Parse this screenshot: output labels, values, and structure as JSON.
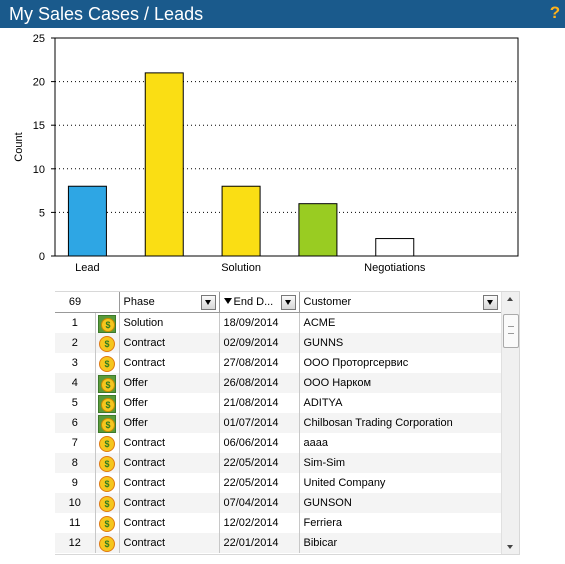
{
  "window": {
    "title": "My Sales Cases / Leads",
    "help_icon": "question-mark-icon"
  },
  "chart_data": {
    "type": "bar",
    "ylabel": "Count",
    "ylim": [
      0,
      25
    ],
    "yticks": [
      0,
      5,
      10,
      15,
      20,
      25
    ],
    "grid": "horizontal dotted",
    "categories": [
      "Lead",
      "",
      "Solution",
      "",
      "Negotiations",
      ""
    ],
    "values": [
      8,
      21,
      8,
      6,
      2,
      0
    ],
    "colors": [
      "#2ea6e4",
      "#fade14",
      "#fade14",
      "#99cc22",
      "#ffffff",
      "#ffffff"
    ]
  },
  "grid": {
    "total_count": "69",
    "columns": [
      {
        "label": "Phase",
        "filter": true,
        "sort": ""
      },
      {
        "label": "End D...",
        "filter": true,
        "sort": "descending"
      },
      {
        "label": "Customer",
        "filter": true,
        "sort": ""
      }
    ],
    "rows": [
      {
        "num": "1",
        "icon": "box",
        "phase": "Solution",
        "end_date": "18/09/2014",
        "customer": "ACME"
      },
      {
        "num": "2",
        "icon": "plain",
        "phase": "Contract",
        "end_date": "02/09/2014",
        "customer": "GUNNS"
      },
      {
        "num": "3",
        "icon": "plain",
        "phase": "Contract",
        "end_date": "27/08/2014",
        "customer": "ООО Проторгсервис"
      },
      {
        "num": "4",
        "icon": "box",
        "phase": "Offer",
        "end_date": "26/08/2014",
        "customer": "ООО Нарком"
      },
      {
        "num": "5",
        "icon": "box",
        "phase": "Offer",
        "end_date": "21/08/2014",
        "customer": "ADITYA"
      },
      {
        "num": "6",
        "icon": "box",
        "phase": "Offer",
        "end_date": "01/07/2014",
        "customer": "Chilbosan Trading Corporation"
      },
      {
        "num": "7",
        "icon": "plain",
        "phase": "Contract",
        "end_date": "06/06/2014",
        "customer": "aaaa"
      },
      {
        "num": "8",
        "icon": "plain",
        "phase": "Contract",
        "end_date": "22/05/2014",
        "customer": "Sim-Sim"
      },
      {
        "num": "9",
        "icon": "plain",
        "phase": "Contract",
        "end_date": "22/05/2014",
        "customer": "United Company"
      },
      {
        "num": "10",
        "icon": "plain",
        "phase": "Contract",
        "end_date": "07/04/2014",
        "customer": "GUNSON"
      },
      {
        "num": "11",
        "icon": "plain",
        "phase": "Contract",
        "end_date": "12/02/2014",
        "customer": "Ferriera"
      },
      {
        "num": "12",
        "icon": "plain",
        "phase": "Contract",
        "end_date": "22/01/2014",
        "customer": "Bibicar"
      }
    ]
  },
  "icons": {
    "row_icon": "dollar-coin-icon",
    "filter": "dropdown-arrow-icon",
    "sort": "sort-descending-icon"
  }
}
